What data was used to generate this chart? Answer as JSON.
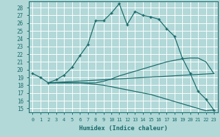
{
  "xlabel": "Humidex (Indice chaleur)",
  "xlim": [
    -0.5,
    23.5
  ],
  "ylim": [
    14.5,
    28.8
  ],
  "yticks": [
    15,
    16,
    17,
    18,
    19,
    20,
    21,
    22,
    23,
    24,
    25,
    26,
    27,
    28
  ],
  "xticks": [
    0,
    1,
    2,
    3,
    4,
    5,
    6,
    7,
    8,
    9,
    10,
    11,
    12,
    13,
    14,
    15,
    16,
    17,
    18,
    19,
    20,
    21,
    22,
    23
  ],
  "bg_color": "#b2d8d8",
  "grid_color": "#ffffff",
  "line_color": "#1a6b6b",
  "line1_x": [
    0,
    1,
    2,
    3,
    4,
    5,
    6,
    7,
    8,
    9,
    10,
    11,
    12,
    13,
    14,
    15,
    16,
    17,
    18,
    19,
    20,
    21,
    22,
    23
  ],
  "line1_y": [
    19.5,
    19.0,
    18.3,
    18.7,
    19.3,
    20.3,
    21.8,
    23.2,
    26.3,
    26.3,
    27.3,
    28.5,
    25.8,
    27.5,
    27.0,
    26.8,
    26.5,
    25.3,
    24.3,
    21.5,
    19.5,
    17.2,
    16.2,
    14.8
  ],
  "line2_x": [
    2,
    3,
    4,
    5,
    6,
    7,
    8,
    9,
    10,
    11,
    12,
    13,
    14,
    15,
    16,
    17,
    18,
    19,
    20,
    21,
    22,
    23
  ],
  "line2_y": [
    18.3,
    18.3,
    18.3,
    18.3,
    18.3,
    18.3,
    18.3,
    18.5,
    18.8,
    19.2,
    19.5,
    19.8,
    20.1,
    20.4,
    20.7,
    21.0,
    21.2,
    21.4,
    21.5,
    21.5,
    21.0,
    19.5
  ],
  "line3_x": [
    2,
    3,
    4,
    5,
    6,
    7,
    8,
    9,
    10,
    11,
    12,
    13,
    14,
    15,
    16,
    17,
    18,
    19,
    20,
    21,
    22,
    23
  ],
  "line3_y": [
    18.3,
    18.3,
    18.3,
    18.3,
    18.3,
    18.2,
    18.1,
    18.0,
    17.8,
    17.6,
    17.4,
    17.2,
    17.0,
    16.8,
    16.5,
    16.2,
    15.9,
    15.6,
    15.3,
    15.0,
    14.7,
    14.8
  ],
  "line4_x": [
    2,
    23
  ],
  "line4_y": [
    18.3,
    19.5
  ]
}
